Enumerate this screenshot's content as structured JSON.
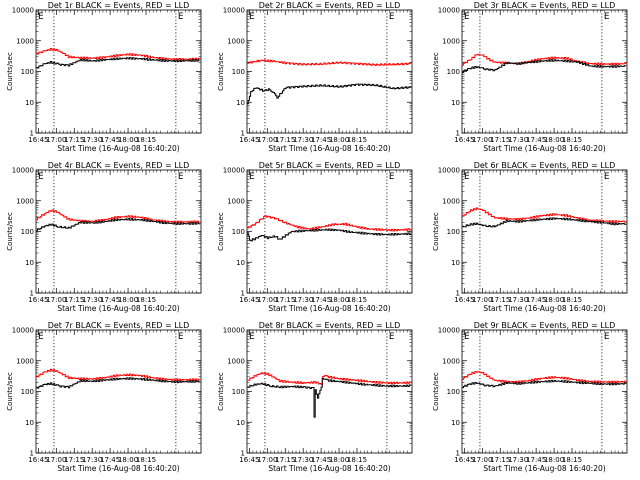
{
  "chart_data": {
    "type": "line",
    "yscale": "log",
    "ylim": [
      1,
      10000
    ],
    "ytick_labels": [
      "1",
      "10",
      "100",
      "1000",
      "10000"
    ],
    "xtick_labels": [
      "16:45",
      "17:00",
      "17:15",
      "17:30",
      "17:45",
      "18:00",
      "18:15"
    ],
    "xlim_minutes": [
      163,
      301
    ],
    "marker_lines_minutes": [
      178,
      280
    ],
    "corner_labels": [
      "E",
      "E"
    ],
    "xlabel": "Start Time (16-Aug-08 16:40:20)",
    "ylabel": "Counts/sec",
    "legend_series": [
      "BLACK = Events",
      "RED = LLD"
    ],
    "line_colors": {
      "events": "#000000",
      "lld": "#ff0000"
    },
    "panels": [
      {
        "title": "Det 1r BLACK = Events, RED = LLD",
        "series": [
          {
            "name": "LLD",
            "x": [
              163,
              170,
              175,
              180,
              185,
              190,
              200,
              210,
              220,
              230,
              240,
              250,
              260,
              270,
              280,
              290,
              300
            ],
            "values": [
              380,
              470,
              530,
              500,
              400,
              300,
              280,
              270,
              290,
              330,
              360,
              340,
              290,
              260,
              250,
              250,
              260
            ]
          },
          {
            "name": "Events",
            "x": [
              163,
              170,
              175,
              180,
              182,
              190,
              200,
              210,
              220,
              230,
              240,
              250,
              260,
              270,
              280,
              290,
              300
            ],
            "values": [
              130,
              180,
              200,
              180,
              170,
              160,
              240,
              220,
              240,
              260,
              270,
              260,
              240,
              225,
              220,
              225,
              230
            ]
          }
        ]
      },
      {
        "title": "Det 2r BLACK = Events, RED = LLD",
        "series": [
          {
            "name": "LLD",
            "x": [
              163,
              175,
              185,
              195,
              210,
              225,
              240,
              255,
              270,
              285,
              300
            ],
            "values": [
              190,
              230,
              215,
              190,
              170,
              175,
              195,
              180,
              165,
              170,
              180
            ]
          },
          {
            "name": "Events",
            "x": [
              163,
              166,
              170,
              176,
              182,
              185,
              188,
              195,
              210,
              225,
              240,
              255,
              270,
              285,
              300
            ],
            "values": [
              9,
              22,
              30,
              24,
              26,
              20,
              14,
              30,
              33,
              35,
              32,
              38,
              36,
              28,
              31
            ]
          }
        ]
      },
      {
        "title": "Det 3r BLACK = Events, RED = LLD",
        "series": [
          {
            "name": "LLD",
            "x": [
              163,
              170,
              175,
              180,
              185,
              190,
              200,
              210,
              220,
              230,
              240,
              250,
              260,
              270,
              280,
              290,
              300
            ],
            "values": [
              170,
              250,
              360,
              340,
              250,
              200,
              190,
              180,
              220,
              260,
              280,
              270,
              210,
              180,
              175,
              175,
              180
            ]
          },
          {
            "name": "Events",
            "x": [
              163,
              170,
              175,
              180,
              182,
              190,
              200,
              210,
              220,
              230,
              240,
              250,
              260,
              270,
              280,
              290,
              300
            ],
            "values": [
              100,
              130,
              140,
              130,
              120,
              110,
              190,
              180,
              200,
              220,
              230,
              220,
              200,
              150,
              145,
              145,
              150
            ]
          }
        ]
      },
      {
        "title": "Det 4r BLACK = Events, RED = LLD",
        "series": [
          {
            "name": "LLD",
            "x": [
              163,
              170,
              175,
              180,
              185,
              190,
              200,
              210,
              220,
              230,
              240,
              250,
              260,
              270,
              280,
              290,
              300
            ],
            "values": [
              250,
              380,
              480,
              440,
              330,
              250,
              220,
              215,
              240,
              290,
              310,
              290,
              240,
              215,
              205,
              205,
              210
            ]
          },
          {
            "name": "Events",
            "x": [
              163,
              170,
              175,
              180,
              182,
              190,
              200,
              210,
              220,
              230,
              240,
              250,
              260,
              270,
              280,
              290,
              300
            ],
            "values": [
              110,
              150,
              170,
              150,
              140,
              130,
              200,
              190,
              210,
              240,
              250,
              240,
              215,
              190,
              180,
              180,
              185
            ]
          }
        ]
      },
      {
        "title": "Det 5r BLACK = Events, RED = LLD",
        "series": [
          {
            "name": "LLD",
            "x": [
              163,
              170,
              178,
              186,
              195,
              205,
              215,
              225,
              235,
              245,
              255,
              265,
              275,
              285,
              295,
              300
            ],
            "values": [
              130,
              180,
              320,
              270,
              190,
              140,
              120,
              140,
              170,
              175,
              140,
              120,
              115,
              110,
              115,
              120
            ]
          },
          {
            "name": "Events",
            "x": [
              163,
              165,
              170,
              175,
              180,
              186,
              190,
              200,
              210,
              220,
              230,
              240,
              250,
              260,
              270,
              280,
              290,
              300
            ],
            "values": [
              90,
              50,
              60,
              75,
              62,
              70,
              55,
              100,
              105,
              110,
              115,
              110,
              95,
              88,
              82,
              80,
              82,
              85
            ]
          }
        ]
      },
      {
        "title": "Det 6r BLACK = Events, RED = LLD",
        "series": [
          {
            "name": "LLD",
            "x": [
              163,
              170,
              175,
              180,
              185,
              190,
              200,
              210,
              220,
              230,
              240,
              250,
              260,
              270,
              280,
              290,
              300
            ],
            "values": [
              320,
              480,
              560,
              500,
              370,
              280,
              260,
              250,
              280,
              330,
              360,
              330,
              270,
              230,
              220,
              210,
              215
            ]
          },
          {
            "name": "Events",
            "x": [
              163,
              170,
              175,
              180,
              182,
              190,
              200,
              210,
              220,
              230,
              240,
              250,
              260,
              270,
              280,
              290,
              300
            ],
            "values": [
              140,
              170,
              180,
              160,
              150,
              145,
              220,
              210,
              230,
              250,
              265,
              255,
              230,
              210,
              195,
              175,
              180
            ]
          }
        ]
      },
      {
        "title": "Det 7r BLACK = Events, RED = LLD",
        "series": [
          {
            "name": "LLD",
            "x": [
              163,
              170,
              175,
              180,
              185,
              190,
              200,
              210,
              220,
              230,
              240,
              250,
              260,
              270,
              280,
              290,
              300
            ],
            "values": [
              300,
              430,
              500,
              460,
              360,
              280,
              260,
              255,
              280,
              330,
              350,
              330,
              280,
              250,
              240,
              240,
              245
            ]
          },
          {
            "name": "Events",
            "x": [
              163,
              170,
              175,
              180,
              182,
              190,
              200,
              210,
              220,
              230,
              240,
              250,
              260,
              270,
              280,
              290,
              300
            ],
            "values": [
              130,
              170,
              180,
              160,
              150,
              140,
              225,
              215,
              235,
              255,
              265,
              255,
              235,
              215,
              205,
              210,
              215
            ]
          }
        ]
      },
      {
        "title": "Det 8r BLACK = Events, RED = LLD",
        "series": [
          {
            "name": "LLD",
            "x": [
              163,
              170,
              175,
              180,
              185,
              190,
              200,
              210,
              220,
              225,
              226,
              228,
              230,
              235,
              240,
              250,
              260,
              270,
              280,
              290,
              300
            ],
            "values": [
              230,
              330,
              400,
              370,
              290,
              220,
              200,
              190,
              200,
              170,
              320,
              330,
              300,
              280,
              260,
              240,
              220,
              200,
              190,
              190,
              195
            ]
          },
          {
            "name": "Events",
            "x": [
              163,
              170,
              175,
              180,
              182,
              190,
              200,
              210,
              218,
              219,
              220,
              222,
              225,
              226,
              228,
              230,
              240,
              250,
              260,
              270,
              280,
              290,
              300
            ],
            "values": [
              140,
              170,
              180,
              160,
              150,
              140,
              145,
              140,
              130,
              15,
              120,
              60,
              140,
              280,
              250,
              230,
              210,
              190,
              170,
              160,
              150,
              150,
              155
            ]
          }
        ]
      },
      {
        "title": "Det 9r BLACK = Events, RED = LLD",
        "series": [
          {
            "name": "LLD",
            "x": [
              163,
              170,
              175,
              180,
              185,
              190,
              200,
              210,
              220,
              230,
              240,
              250,
              260,
              270,
              280,
              290,
              300
            ],
            "values": [
              260,
              380,
              440,
              400,
              300,
              230,
              210,
              205,
              230,
              270,
              290,
              270,
              230,
              210,
              205,
              205,
              210
            ]
          },
          {
            "name": "Events",
            "x": [
              163,
              170,
              175,
              180,
              182,
              190,
              200,
              210,
              220,
              230,
              240,
              250,
              260,
              270,
              280,
              290,
              300
            ],
            "values": [
              140,
              180,
              190,
              170,
              160,
              150,
              190,
              180,
              195,
              210,
              220,
              210,
              195,
              185,
              175,
              175,
              180
            ]
          }
        ]
      }
    ]
  }
}
